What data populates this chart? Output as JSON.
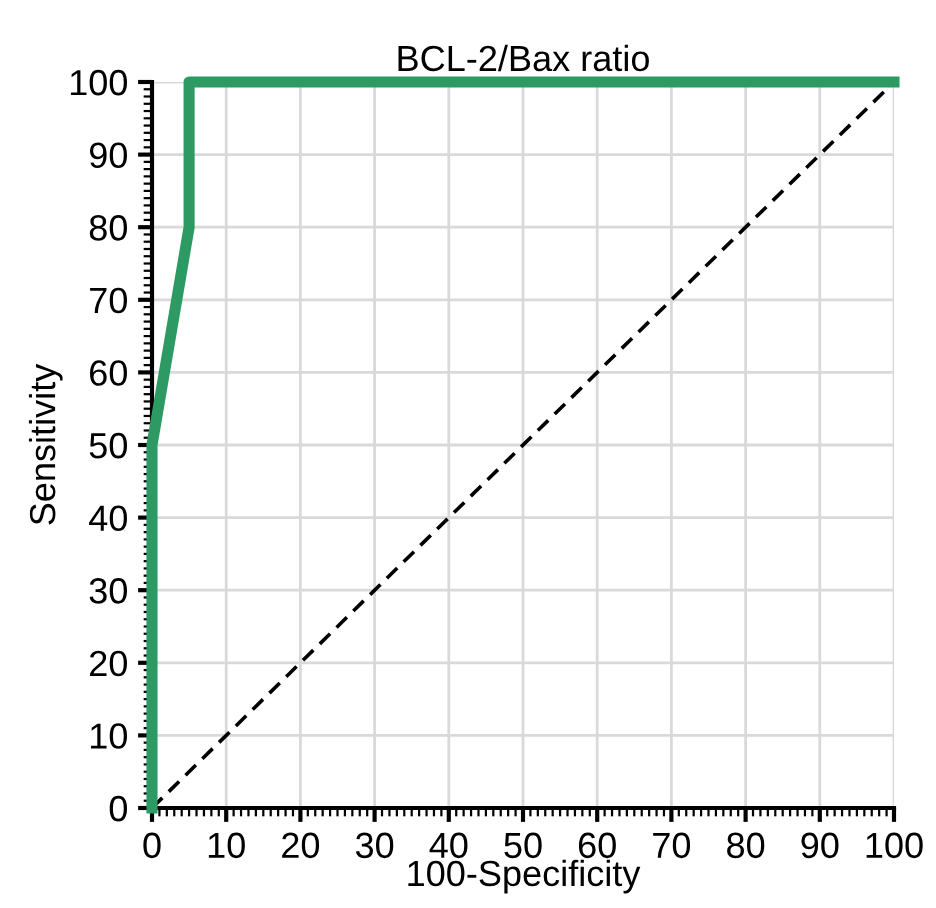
{
  "chart_data": {
    "type": "line",
    "title": "BCL-2/Bax ratio",
    "xlabel": "100-Specificity",
    "ylabel": "Sensitivity",
    "series": [
      {
        "color": "#2e9a63",
        "x": [
          0,
          0,
          5,
          5,
          100
        ],
        "values": [
          0,
          50,
          80,
          100,
          100
        ],
        "line_style": "solid"
      },
      {
        "color": "#000000",
        "x": [
          0,
          100
        ],
        "values": [
          0,
          100
        ],
        "line_style": "dashed"
      }
    ],
    "xlim": [
      0,
      100
    ],
    "ylim": [
      0,
      100
    ],
    "xticks": [
      0,
      10,
      20,
      30,
      40,
      50,
      60,
      70,
      80,
      90,
      100
    ],
    "yticks": [
      0,
      10,
      20,
      30,
      40,
      50,
      60,
      70,
      80,
      90,
      100
    ],
    "grid": true,
    "marker": "none"
  }
}
